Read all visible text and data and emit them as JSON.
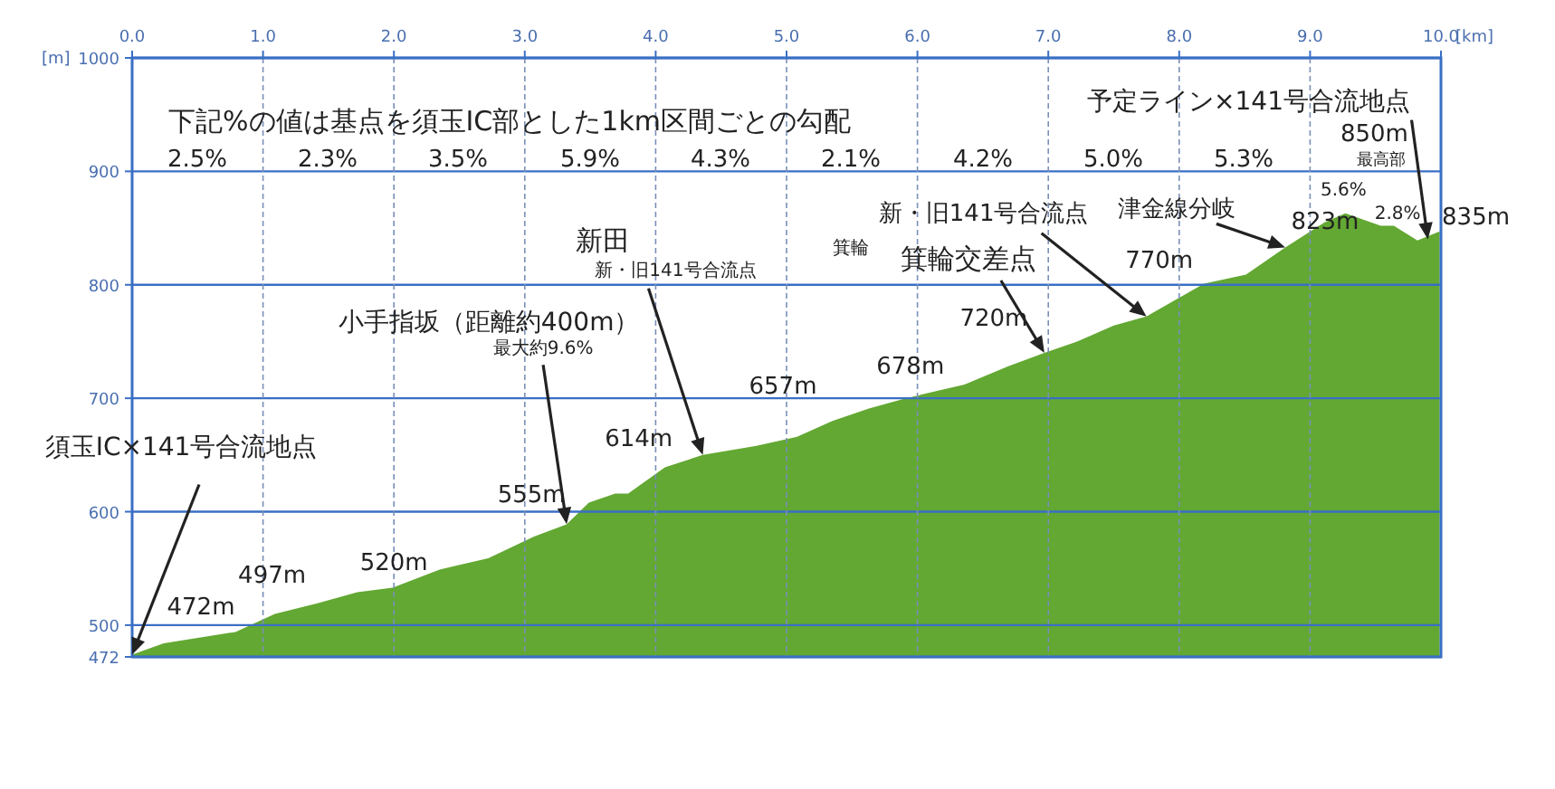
{
  "chart_data": {
    "type": "area",
    "subtitle": "下記%の値は基点を須玉IC部とした1km区間ごとの勾配",
    "xlabel": "[km]",
    "ylabel": "[m]",
    "x": [
      0,
      0.24,
      0.79,
      1.09,
      1.41,
      1.72,
      1.99,
      2.35,
      2.72,
      3.07,
      3.32,
      3.49,
      3.69,
      3.79,
      4.07,
      4.36,
      4.77,
      5.08,
      5.35,
      5.63,
      5.91,
      6.36,
      6.69,
      6.97,
      7.22,
      7.5,
      7.75,
      8.19,
      8.51,
      8.81,
      9.11,
      9.27,
      9.54,
      9.64,
      9.82,
      9.99
    ],
    "series": [
      {
        "color": "#62a832",
        "values": [
          474,
          484,
          494,
          510,
          519,
          529,
          533,
          549,
          559,
          578,
          589,
          608,
          616,
          616,
          639,
          650,
          658,
          666,
          680,
          691,
          700,
          712,
          728,
          740,
          750,
          764,
          772,
          801,
          809,
          833,
          855,
          863,
          852,
          852,
          839,
          847
        ]
      }
    ],
    "xlim": [
      0,
      10
    ],
    "ylim": [
      472,
      1000
    ],
    "xticks": [
      {
        "value": 0,
        "label": "0.0"
      },
      {
        "value": 1,
        "label": "1.0"
      },
      {
        "value": 2,
        "label": "2.0"
      },
      {
        "value": 3,
        "label": "3.0"
      },
      {
        "value": 4,
        "label": "4.0"
      },
      {
        "value": 5,
        "label": "5.0"
      },
      {
        "value": 6,
        "label": "6.0"
      },
      {
        "value": 7,
        "label": "7.0"
      },
      {
        "value": 8,
        "label": "8.0"
      },
      {
        "value": 9,
        "label": "9.0"
      },
      {
        "value": 10,
        "label": "10.0"
      }
    ],
    "yticks": [
      472,
      500,
      600,
      700,
      800,
      900,
      1000
    ],
    "grid": true,
    "annotations": [
      "2.5%",
      "2.3%",
      "3.5%",
      "5.9%",
      "4.3%",
      "2.1%",
      "4.2%",
      "5.0%",
      "5.3%",
      "箕輪",
      {
        "text": "5.6%",
        "x": 9.2,
        "y": 863
      },
      {
        "text": "2.8%",
        "x": 9.6,
        "y": 852
      },
      {
        "text": "472m",
        "x": 0,
        "y": 474
      },
      {
        "text": "497m",
        "x": 1.0,
        "y": 510
      },
      {
        "text": "520m",
        "x": 2.0,
        "y": 533
      },
      {
        "text": "555m",
        "x": 3.3,
        "y": 589
      },
      {
        "text": "614m",
        "x": 4.05,
        "y": 632
      },
      {
        "text": "657m",
        "x": 5.0,
        "y": 666
      },
      {
        "text": "678m",
        "x": 5.6,
        "y": 691
      },
      {
        "text": "720m",
        "x": 6.97,
        "y": 740
      },
      {
        "text": "770m",
        "x": 7.75,
        "y": 772
      },
      {
        "text": "823m",
        "x": 8.81,
        "y": 833
      },
      {
        "text": "835m",
        "x": 9.99,
        "y": 847
      },
      {
        "text": "850m",
        "x": 9.27,
        "y": 863
      },
      {
        "text": "最高部",
        "x": 9.27,
        "y": 863
      },
      {
        "text": "須玉IC×141号合流地点",
        "x": 0,
        "y": 474
      },
      {
        "text": "小手指坂（距離約400m）",
        "x": 3.32,
        "y": 589
      },
      {
        "text": "最大約9.6%",
        "x": 3.32,
        "y": 589
      },
      "新田",
      {
        "text": "新・旧141号合流点",
        "x": 4.36,
        "y": 650
      },
      {
        "text": "箕輪交差点",
        "x": 6.97,
        "y": 740
      },
      {
        "text": "新・旧141号合流点",
        "x": 7.75,
        "y": 772
      },
      {
        "text": "津金線分岐",
        "x": 8.81,
        "y": 833
      },
      {
        "text": "予定ライン×141号合流地点",
        "x": 9.9,
        "y": 840
      }
    ]
  }
}
